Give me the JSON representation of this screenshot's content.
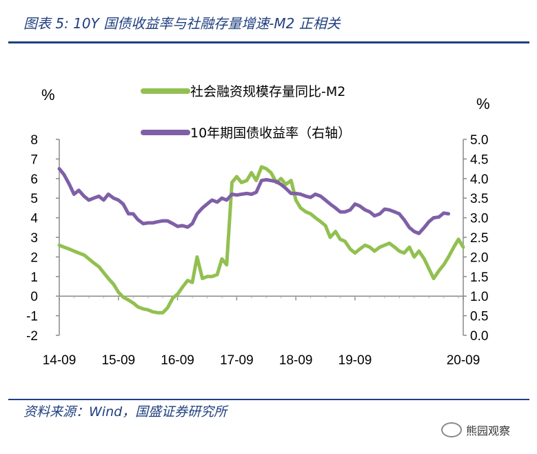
{
  "header": {
    "title": "图表 5:  10Y 国债收益率与社融存量增速-M2 正相关"
  },
  "footer": {
    "source": "资料来源：Wind，国盛证券研究所",
    "watermark": "熊园观察"
  },
  "colors": {
    "accent": "#1f3f7f",
    "series_green": "#92c050",
    "series_purple": "#7f5fa7"
  },
  "chart_data": {
    "type": "line",
    "title": "",
    "left_axis": {
      "unit": "%",
      "ylim": [
        -2,
        8
      ],
      "ticks": [
        "8",
        "7",
        "6",
        "5",
        "4",
        "3",
        "2",
        "1",
        "0",
        "-1",
        "-2"
      ]
    },
    "right_axis": {
      "unit": "%",
      "ylim": [
        0.0,
        5.0
      ],
      "ticks": [
        "5.0",
        "4.5",
        "4.0",
        "3.5",
        "3.0",
        "2.5",
        "2.0",
        "1.5",
        "1.0",
        "0.5",
        "0.0"
      ]
    },
    "x_ticks": [
      "14-09",
      "15-09",
      "16-09",
      "17-09",
      "18-09",
      "19-09",
      "20-09"
    ],
    "grid": false,
    "legend_position": "top",
    "series": [
      {
        "name": "社会融资规模存量同比-M2",
        "axis": "left",
        "color": "#92c050",
        "points": [
          [
            0.0,
            2.6
          ],
          [
            0.08,
            2.5
          ],
          [
            0.17,
            2.4
          ],
          [
            0.25,
            2.3
          ],
          [
            0.33,
            2.2
          ],
          [
            0.42,
            2.1
          ],
          [
            0.5,
            1.9
          ],
          [
            0.58,
            1.7
          ],
          [
            0.67,
            1.5
          ],
          [
            0.75,
            1.2
          ],
          [
            0.83,
            0.9
          ],
          [
            0.92,
            0.6
          ],
          [
            1.0,
            0.2
          ],
          [
            1.08,
            -0.05
          ],
          [
            1.17,
            -0.2
          ],
          [
            1.25,
            -0.35
          ],
          [
            1.33,
            -0.55
          ],
          [
            1.42,
            -0.65
          ],
          [
            1.5,
            -0.7
          ],
          [
            1.58,
            -0.8
          ],
          [
            1.67,
            -0.85
          ],
          [
            1.75,
            -0.85
          ],
          [
            1.83,
            -0.6
          ],
          [
            1.92,
            -0.1
          ],
          [
            2.0,
            0.1
          ],
          [
            2.08,
            0.45
          ],
          [
            2.17,
            0.8
          ],
          [
            2.25,
            0.7
          ],
          [
            2.33,
            2.0
          ],
          [
            2.42,
            0.9
          ],
          [
            2.5,
            1.0
          ],
          [
            2.58,
            1.0
          ],
          [
            2.67,
            1.1
          ],
          [
            2.75,
            1.9
          ],
          [
            2.83,
            1.6
          ],
          [
            2.92,
            5.8
          ],
          [
            3.0,
            6.1
          ],
          [
            3.08,
            5.8
          ],
          [
            3.17,
            5.9
          ],
          [
            3.25,
            6.3
          ],
          [
            3.33,
            5.9
          ],
          [
            3.42,
            6.6
          ],
          [
            3.5,
            6.5
          ],
          [
            3.58,
            6.3
          ],
          [
            3.67,
            5.8
          ],
          [
            3.75,
            6.0
          ],
          [
            3.83,
            5.7
          ],
          [
            3.92,
            5.9
          ],
          [
            4.0,
            4.9
          ],
          [
            4.08,
            4.5
          ],
          [
            4.17,
            4.3
          ],
          [
            4.25,
            4.2
          ],
          [
            4.33,
            4.0
          ],
          [
            4.42,
            3.8
          ],
          [
            4.5,
            3.6
          ],
          [
            4.58,
            3.0
          ],
          [
            4.67,
            3.3
          ],
          [
            4.75,
            2.9
          ],
          [
            4.83,
            2.8
          ],
          [
            4.92,
            2.4
          ],
          [
            5.0,
            2.2
          ],
          [
            5.08,
            2.4
          ],
          [
            5.17,
            2.6
          ],
          [
            5.25,
            2.5
          ],
          [
            5.33,
            2.3
          ],
          [
            5.42,
            2.5
          ],
          [
            5.5,
            2.6
          ],
          [
            5.58,
            2.7
          ],
          [
            5.67,
            2.5
          ],
          [
            5.75,
            2.3
          ],
          [
            5.83,
            2.2
          ],
          [
            5.92,
            2.5
          ],
          [
            6.0,
            2.0
          ],
          [
            6.08,
            2.3
          ],
          [
            6.17,
            1.9
          ],
          [
            6.25,
            1.4
          ],
          [
            6.33,
            0.9
          ],
          [
            6.42,
            1.3
          ],
          [
            6.5,
            1.6
          ],
          [
            6.58,
            2.0
          ],
          [
            6.67,
            2.5
          ],
          [
            6.75,
            2.9
          ],
          [
            6.83,
            2.5
          ]
        ]
      },
      {
        "name": "10年期国债收益率（右轴）",
        "axis": "right",
        "color": "#7f5fa7",
        "points": [
          [
            0.0,
            4.25
          ],
          [
            0.08,
            4.1
          ],
          [
            0.17,
            3.85
          ],
          [
            0.25,
            3.6
          ],
          [
            0.33,
            3.7
          ],
          [
            0.42,
            3.55
          ],
          [
            0.5,
            3.45
          ],
          [
            0.58,
            3.5
          ],
          [
            0.67,
            3.55
          ],
          [
            0.75,
            3.45
          ],
          [
            0.83,
            3.6
          ],
          [
            0.92,
            3.5
          ],
          [
            1.0,
            3.45
          ],
          [
            1.08,
            3.35
          ],
          [
            1.17,
            3.1
          ],
          [
            1.25,
            3.1
          ],
          [
            1.33,
            2.95
          ],
          [
            1.42,
            2.85
          ],
          [
            1.5,
            2.87
          ],
          [
            1.58,
            2.87
          ],
          [
            1.67,
            2.9
          ],
          [
            1.75,
            2.92
          ],
          [
            1.83,
            2.92
          ],
          [
            1.92,
            2.85
          ],
          [
            2.0,
            2.78
          ],
          [
            2.08,
            2.8
          ],
          [
            2.17,
            2.76
          ],
          [
            2.25,
            2.85
          ],
          [
            2.33,
            3.1
          ],
          [
            2.42,
            3.25
          ],
          [
            2.5,
            3.35
          ],
          [
            2.58,
            3.45
          ],
          [
            2.67,
            3.4
          ],
          [
            2.75,
            3.5
          ],
          [
            2.83,
            3.45
          ],
          [
            2.92,
            3.6
          ],
          [
            3.0,
            3.58
          ],
          [
            3.08,
            3.6
          ],
          [
            3.17,
            3.62
          ],
          [
            3.25,
            3.6
          ],
          [
            3.33,
            3.65
          ],
          [
            3.42,
            3.95
          ],
          [
            3.5,
            3.97
          ],
          [
            3.58,
            3.95
          ],
          [
            3.67,
            3.92
          ],
          [
            3.75,
            3.85
          ],
          [
            3.83,
            3.75
          ],
          [
            3.92,
            3.62
          ],
          [
            4.0,
            3.62
          ],
          [
            4.08,
            3.6
          ],
          [
            4.17,
            3.55
          ],
          [
            4.25,
            3.52
          ],
          [
            4.33,
            3.6
          ],
          [
            4.42,
            3.55
          ],
          [
            4.5,
            3.45
          ],
          [
            4.58,
            3.35
          ],
          [
            4.67,
            3.25
          ],
          [
            4.75,
            3.15
          ],
          [
            4.83,
            3.15
          ],
          [
            4.92,
            3.2
          ],
          [
            5.0,
            3.35
          ],
          [
            5.08,
            3.3
          ],
          [
            5.17,
            3.2
          ],
          [
            5.25,
            3.15
          ],
          [
            5.33,
            3.05
          ],
          [
            5.42,
            3.1
          ],
          [
            5.5,
            3.22
          ],
          [
            5.58,
            3.2
          ],
          [
            5.67,
            3.15
          ],
          [
            5.75,
            3.1
          ],
          [
            5.83,
            2.95
          ],
          [
            5.92,
            2.75
          ],
          [
            6.0,
            2.65
          ],
          [
            6.08,
            2.6
          ],
          [
            6.17,
            2.75
          ],
          [
            6.25,
            2.9
          ],
          [
            6.33,
            3.0
          ],
          [
            6.42,
            3.02
          ],
          [
            6.5,
            3.12
          ],
          [
            6.58,
            3.1
          ]
        ]
      }
    ]
  }
}
